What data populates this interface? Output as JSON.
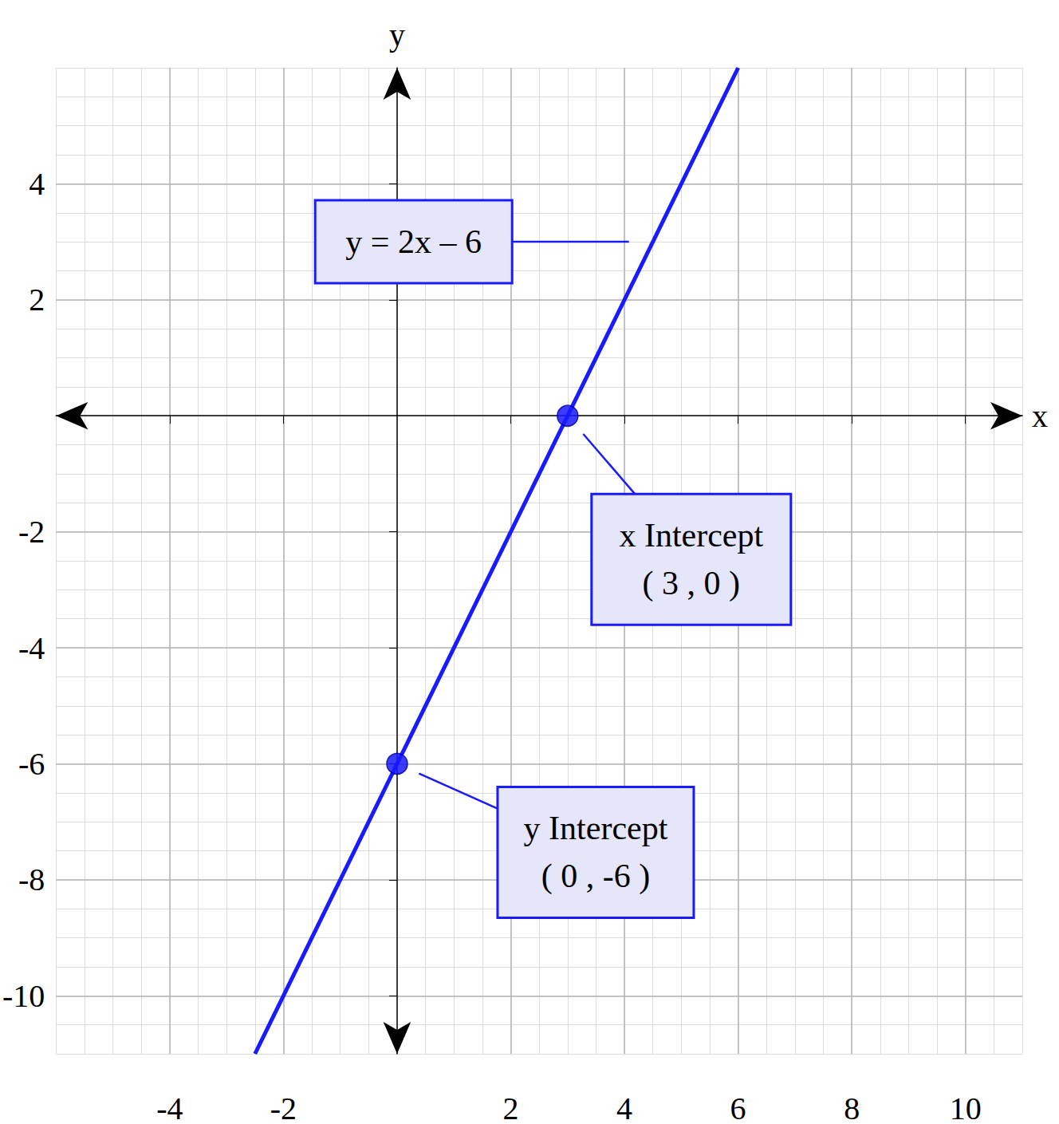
{
  "chart_data": {
    "type": "line",
    "x_label": "x",
    "y_label": "y",
    "xlim": [
      -6,
      11
    ],
    "ylim": [
      -11,
      6
    ],
    "xticks": [
      -4,
      -2,
      2,
      4,
      6,
      8,
      10
    ],
    "yticks": [
      -10,
      -8,
      -6,
      -4,
      -2,
      2,
      4
    ],
    "grid": true,
    "series": [
      {
        "type": "line",
        "color": "#1a1aff",
        "x": [
          -2.5,
          6
        ],
        "values": [
          -11,
          6
        ]
      },
      {
        "type": "scatter",
        "marker": "circle",
        "color": "#1a1aff",
        "x": [
          3,
          0
        ],
        "values": [
          0,
          -6
        ]
      }
    ],
    "annotations": [
      {
        "text": [
          "y = 2x – 6"
        ],
        "x": 4.5,
        "y": 3
      },
      {
        "text": [
          "x Intercept",
          "( 3 , 0 )"
        ],
        "x": 3,
        "y": 0
      },
      {
        "text": [
          "y Intercept",
          "( 0 , -6 )"
        ],
        "x": 0,
        "y": -6
      }
    ]
  }
}
